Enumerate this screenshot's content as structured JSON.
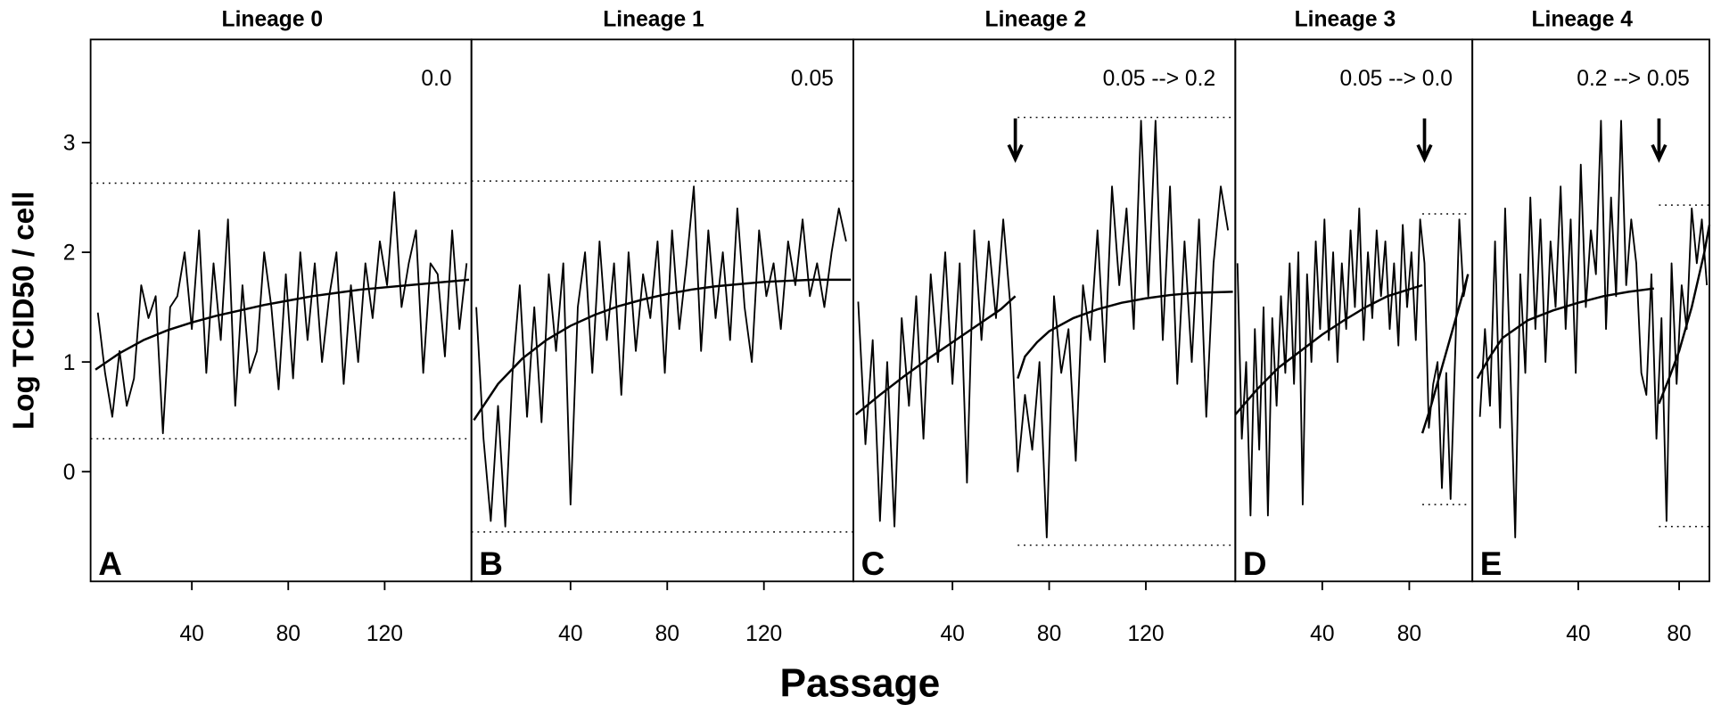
{
  "ylabel": "Log TCID50 / cell",
  "xlabel": "Passage",
  "chart_data": [
    {
      "type": "line",
      "title": "Lineage 0",
      "annotation": "0.0",
      "panel_label": "A",
      "color": "#000000",
      "xlim": [
        -2,
        156
      ],
      "ylim": [
        -1.0,
        3.94
      ],
      "xticks": [
        40,
        80,
        120
      ],
      "yticks": [
        0,
        1,
        2,
        3
      ],
      "x": [
        1,
        4,
        7,
        10,
        13,
        16,
        19,
        22,
        25,
        28,
        31,
        34,
        37,
        40,
        43,
        46,
        49,
        52,
        55,
        58,
        61,
        64,
        67,
        70,
        73,
        76,
        79,
        82,
        85,
        88,
        91,
        94,
        97,
        100,
        103,
        106,
        109,
        112,
        115,
        118,
        121,
        124,
        127,
        130,
        133,
        136,
        139,
        142,
        145,
        148,
        151,
        154
      ],
      "values": [
        1.45,
        0.9,
        0.5,
        1.1,
        0.6,
        0.85,
        1.7,
        1.4,
        1.6,
        0.35,
        1.5,
        1.6,
        2.0,
        1.3,
        2.2,
        0.9,
        1.9,
        1.2,
        2.3,
        0.6,
        1.7,
        0.9,
        1.1,
        2.0,
        1.5,
        0.75,
        1.8,
        0.85,
        2.0,
        1.2,
        1.9,
        1.0,
        1.6,
        2.0,
        0.8,
        1.7,
        1.0,
        1.9,
        1.4,
        2.1,
        1.7,
        2.55,
        1.5,
        1.9,
        2.2,
        0.9,
        1.9,
        1.8,
        1.05,
        2.2,
        1.3,
        1.9
      ],
      "fit": [
        {
          "x": [
            0,
            10,
            20,
            30,
            40,
            50,
            60,
            70,
            80,
            90,
            100,
            110,
            120,
            130,
            140,
            150,
            155
          ],
          "values": [
            0.93,
            1.08,
            1.2,
            1.29,
            1.36,
            1.42,
            1.47,
            1.52,
            1.56,
            1.6,
            1.63,
            1.66,
            1.68,
            1.7,
            1.72,
            1.74,
            1.75
          ]
        }
      ],
      "hlines": [
        {
          "y": 2.63,
          "x": [
            -2,
            156
          ]
        },
        {
          "y": 0.3,
          "x": [
            -2,
            156
          ]
        }
      ]
    },
    {
      "type": "line",
      "title": "Lineage 1",
      "annotation": "0.05",
      "panel_label": "B",
      "color": "#000000",
      "xlim": [
        -1,
        157
      ],
      "ylim": [
        -1.0,
        3.94
      ],
      "xticks": [
        40,
        80,
        120
      ],
      "x": [
        1,
        4,
        7,
        10,
        13,
        16,
        19,
        22,
        25,
        28,
        31,
        34,
        37,
        40,
        43,
        46,
        49,
        52,
        55,
        58,
        61,
        64,
        67,
        70,
        73,
        76,
        79,
        82,
        85,
        88,
        91,
        94,
        97,
        100,
        103,
        106,
        109,
        112,
        115,
        118,
        121,
        124,
        127,
        130,
        133,
        136,
        139,
        142,
        145,
        148,
        151,
        154
      ],
      "values": [
        1.5,
        0.3,
        -0.45,
        0.6,
        -0.5,
        0.9,
        1.7,
        0.5,
        1.5,
        0.45,
        1.8,
        1.1,
        1.9,
        -0.3,
        1.5,
        2.0,
        0.9,
        2.1,
        1.2,
        1.9,
        0.7,
        2.0,
        1.1,
        1.8,
        1.4,
        2.1,
        0.9,
        2.2,
        1.3,
        1.9,
        2.6,
        1.1,
        2.2,
        1.4,
        2.0,
        1.2,
        2.4,
        1.5,
        1.0,
        2.2,
        1.6,
        1.9,
        1.3,
        2.1,
        1.7,
        2.3,
        1.6,
        1.9,
        1.5,
        2.0,
        2.4,
        2.1
      ],
      "fit": [
        {
          "x": [
            0,
            10,
            20,
            30,
            40,
            50,
            60,
            70,
            80,
            90,
            100,
            110,
            120,
            130,
            140,
            150,
            156
          ],
          "values": [
            0.47,
            0.8,
            1.03,
            1.2,
            1.33,
            1.43,
            1.51,
            1.57,
            1.62,
            1.66,
            1.69,
            1.71,
            1.73,
            1.74,
            1.75,
            1.75,
            1.75
          ]
        }
      ],
      "hlines": [
        {
          "y": 2.65,
          "x": [
            -1,
            157
          ]
        },
        {
          "y": -0.55,
          "x": [
            -1,
            157
          ]
        }
      ]
    },
    {
      "type": "line",
      "title": "Lineage 2",
      "annotation": "0.05 --> 0.2",
      "panel_label": "C",
      "color": "#000000",
      "xlim": [
        -1,
        157
      ],
      "ylim": [
        -1.0,
        3.94
      ],
      "xticks": [
        40,
        80,
        120
      ],
      "arrow_x": 66,
      "x": [
        1,
        4,
        7,
        10,
        13,
        16,
        19,
        22,
        25,
        28,
        31,
        34,
        37,
        40,
        43,
        46,
        49,
        52,
        55,
        58,
        61,
        64,
        67,
        70,
        73,
        76,
        79,
        82,
        85,
        88,
        91,
        94,
        97,
        100,
        103,
        106,
        109,
        112,
        115,
        118,
        121,
        124,
        127,
        130,
        133,
        136,
        139,
        142,
        145,
        148,
        151,
        154
      ],
      "values": [
        1.55,
        0.25,
        1.2,
        -0.45,
        1.0,
        -0.5,
        1.4,
        0.6,
        1.6,
        0.3,
        1.8,
        1.0,
        2.0,
        0.8,
        1.9,
        -0.1,
        2.2,
        1.2,
        2.1,
        1.4,
        2.3,
        1.5,
        0.0,
        0.7,
        0.2,
        1.0,
        -0.6,
        1.6,
        0.9,
        1.3,
        0.1,
        1.7,
        1.2,
        2.2,
        1.0,
        2.6,
        1.7,
        2.4,
        1.3,
        3.2,
        1.6,
        3.2,
        1.2,
        2.6,
        0.8,
        2.1,
        1.0,
        2.3,
        0.5,
        1.9,
        2.6,
        2.2
      ],
      "fit": [
        {
          "x": [
            0,
            10,
            20,
            30,
            40,
            50,
            60,
            66
          ],
          "values": [
            0.52,
            0.7,
            0.87,
            1.03,
            1.18,
            1.33,
            1.48,
            1.6
          ]
        },
        {
          "x": [
            67,
            70,
            75,
            80,
            90,
            100,
            110,
            120,
            130,
            140,
            156
          ],
          "values": [
            0.85,
            1.05,
            1.18,
            1.28,
            1.4,
            1.48,
            1.54,
            1.58,
            1.61,
            1.63,
            1.64
          ]
        }
      ],
      "hlines": [
        {
          "y": 3.23,
          "x": [
            67,
            157
          ]
        },
        {
          "y": -0.67,
          "x": [
            67,
            157
          ]
        }
      ]
    },
    {
      "type": "line",
      "title": "Lineage 3",
      "annotation": "0.05 --> 0.0",
      "panel_label": "D",
      "color": "#000000",
      "xlim": [
        0,
        109
      ],
      "ylim": [
        -1.0,
        3.94
      ],
      "xticks": [
        40,
        80
      ],
      "arrow_x": 87,
      "x": [
        1,
        3,
        5,
        7,
        9,
        11,
        13,
        15,
        17,
        19,
        21,
        23,
        25,
        27,
        29,
        31,
        33,
        35,
        37,
        39,
        41,
        43,
        45,
        47,
        49,
        51,
        53,
        55,
        57,
        59,
        61,
        63,
        65,
        67,
        69,
        71,
        73,
        75,
        77,
        79,
        81,
        83,
        85,
        87,
        89,
        91,
        93,
        95,
        97,
        99,
        101,
        103,
        105,
        107
      ],
      "values": [
        1.9,
        0.3,
        1.0,
        -0.4,
        1.3,
        0.2,
        1.5,
        -0.4,
        1.4,
        0.6,
        1.6,
        0.9,
        1.9,
        0.8,
        2.0,
        -0.3,
        1.8,
        1.0,
        2.1,
        1.3,
        2.3,
        1.2,
        2.0,
        1.0,
        1.9,
        1.3,
        2.2,
        1.5,
        2.4,
        1.2,
        2.0,
        1.4,
        2.2,
        1.6,
        2.1,
        1.3,
        1.9,
        1.15,
        2.25,
        1.5,
        2.0,
        1.2,
        2.3,
        1.9,
        0.4,
        0.8,
        1.0,
        -0.15,
        0.9,
        -0.25,
        1.0,
        2.3,
        1.6,
        1.8
      ],
      "fit": [
        {
          "x": [
            0,
            10,
            20,
            30,
            40,
            50,
            60,
            70,
            86
          ],
          "values": [
            0.52,
            0.75,
            0.95,
            1.1,
            1.25,
            1.38,
            1.5,
            1.6,
            1.7
          ]
        },
        {
          "x": [
            86,
            90,
            95,
            100,
            105,
            107
          ],
          "values": [
            0.35,
            0.6,
            0.95,
            1.3,
            1.65,
            1.8
          ]
        }
      ],
      "hlines": [
        {
          "y": 2.35,
          "x": [
            86,
            107
          ]
        },
        {
          "y": -0.3,
          "x": [
            86,
            107
          ]
        }
      ]
    },
    {
      "type": "line",
      "title": "Lineage 4",
      "annotation": "0.2 --> 0.05",
      "panel_label": "E",
      "color": "#000000",
      "xlim": [
        -2,
        92
      ],
      "ylim": [
        -1.0,
        3.94
      ],
      "xticks": [
        40,
        80
      ],
      "arrow_x": 72,
      "x": [
        1,
        3,
        5,
        7,
        9,
        11,
        13,
        15,
        17,
        19,
        21,
        23,
        25,
        27,
        29,
        31,
        33,
        35,
        37,
        39,
        41,
        43,
        45,
        47,
        49,
        51,
        53,
        55,
        57,
        59,
        61,
        63,
        65,
        67,
        69,
        71,
        73,
        75,
        77,
        79,
        81,
        83,
        85,
        87,
        89,
        91
      ],
      "values": [
        0.5,
        1.3,
        0.6,
        2.1,
        0.4,
        2.4,
        1.0,
        -0.6,
        1.8,
        0.9,
        2.5,
        1.3,
        2.3,
        1.0,
        2.1,
        1.5,
        2.6,
        1.3,
        2.3,
        0.9,
        2.8,
        1.5,
        2.2,
        1.8,
        3.2,
        1.3,
        2.5,
        1.6,
        3.2,
        1.7,
        2.3,
        1.9,
        0.9,
        0.7,
        1.8,
        0.3,
        1.4,
        -0.45,
        1.9,
        0.8,
        1.7,
        1.3,
        2.4,
        1.9,
        2.3,
        1.7
      ],
      "fit": [
        {
          "x": [
            0,
            5,
            10,
            20,
            30,
            40,
            50,
            60,
            70
          ],
          "values": [
            0.85,
            1.05,
            1.22,
            1.38,
            1.47,
            1.54,
            1.6,
            1.64,
            1.67
          ]
        },
        {
          "x": [
            72,
            76,
            80,
            85,
            90,
            92
          ],
          "values": [
            0.62,
            0.85,
            1.1,
            1.5,
            2.0,
            2.25
          ]
        }
      ],
      "hlines": [
        {
          "y": 2.43,
          "x": [
            72,
            92
          ]
        },
        {
          "y": -0.5,
          "x": [
            72,
            92
          ]
        }
      ]
    }
  ]
}
